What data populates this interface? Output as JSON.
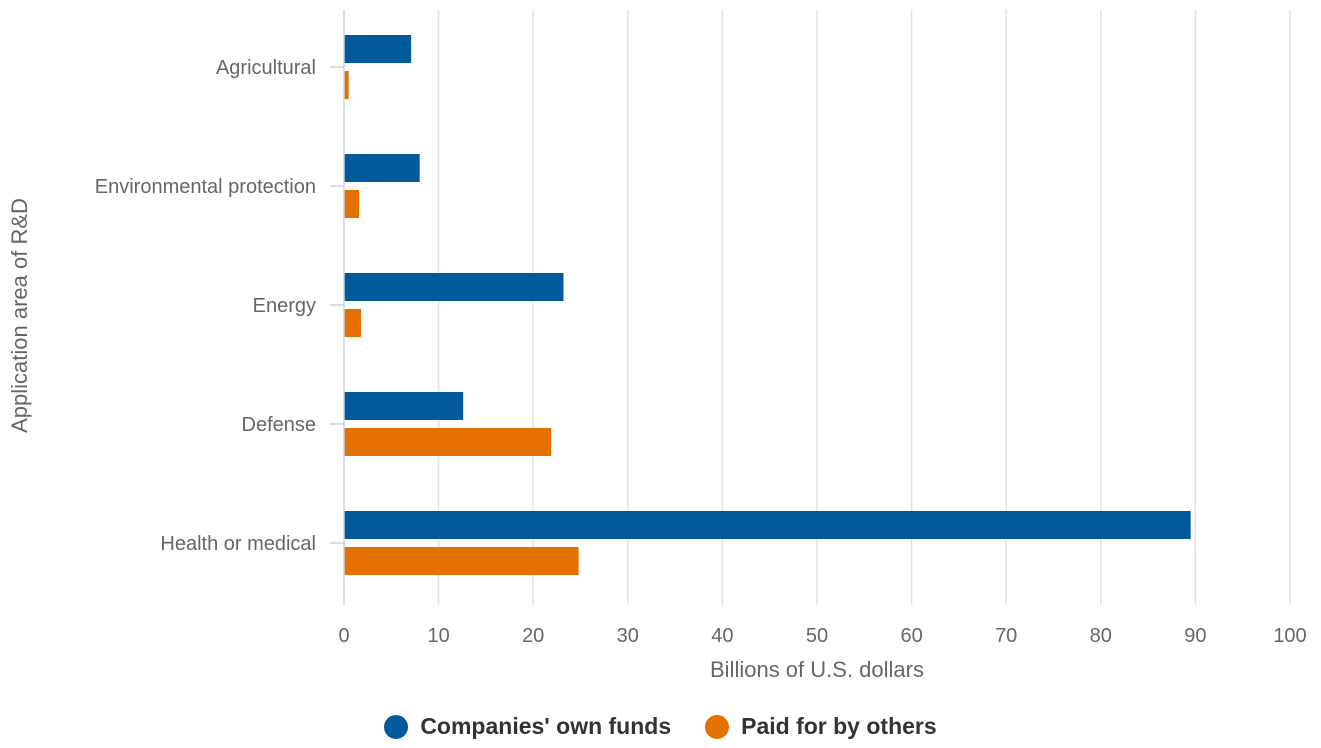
{
  "chart_data": {
    "type": "bar",
    "orientation": "horizontal",
    "categories": [
      "Agricultural",
      "Environmental protection",
      "Energy",
      "Defense",
      "Health or medical"
    ],
    "series": [
      {
        "name": "Companies' own funds",
        "color": "#005A9C",
        "values": [
          7.1,
          8.0,
          23.2,
          12.6,
          89.5
        ]
      },
      {
        "name": "Paid for by others",
        "color": "#E57200",
        "values": [
          0.5,
          1.6,
          1.8,
          21.9,
          24.8
        ]
      }
    ],
    "xlabel": "Billions of U.S. dollars",
    "ylabel": "Application area of R&D",
    "xlim": [
      0,
      100
    ],
    "xticks": [
      "0",
      "10",
      "20",
      "30",
      "40",
      "50",
      "60",
      "70",
      "80",
      "90",
      "100"
    ],
    "grid": "vertical",
    "legend_position": "bottom-center"
  }
}
